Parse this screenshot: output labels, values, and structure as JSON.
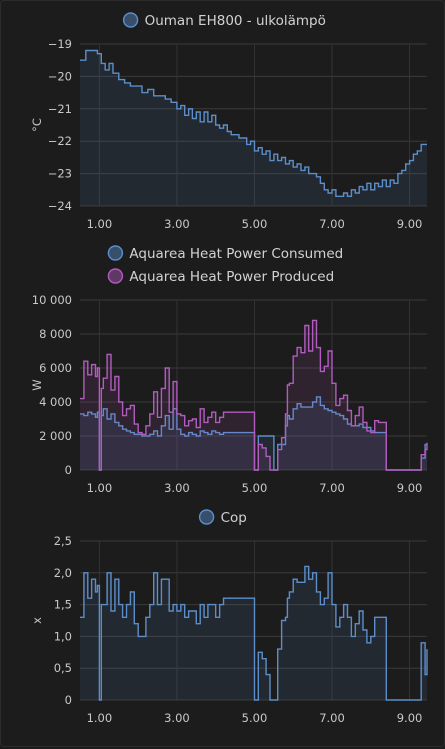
{
  "chart_data": [
    {
      "type": "line",
      "title": "",
      "xlabel": "",
      "ylabel": "°C",
      "ylim": [
        -24,
        -19
      ],
      "xlim": [
        0.5,
        9.45
      ],
      "x_ticks": [
        1,
        3,
        5,
        7,
        9
      ],
      "x_tick_labels": [
        "1.00",
        "3.00",
        "5.00",
        "7.00",
        "9.00"
      ],
      "y_ticks": [
        -24,
        -23,
        -22,
        -21,
        -20,
        -19
      ],
      "y_tick_labels": [
        "−24",
        "−23",
        "−22",
        "−21",
        "−20",
        "−19"
      ],
      "grid": true,
      "legend": "top-center",
      "step": true,
      "series": [
        {
          "name": "Ouman EH800 - ulkolämpö",
          "color": "#5c8ecb",
          "x": [
            0.5,
            0.65,
            0.8,
            0.95,
            1.05,
            1.15,
            1.25,
            1.35,
            1.5,
            1.65,
            1.8,
            1.95,
            2.1,
            2.25,
            2.4,
            2.55,
            2.7,
            2.85,
            3.0,
            3.1,
            3.2,
            3.3,
            3.4,
            3.5,
            3.6,
            3.7,
            3.8,
            3.9,
            4.0,
            4.1,
            4.2,
            4.3,
            4.4,
            4.5,
            4.6,
            4.7,
            4.8,
            4.9,
            5.0,
            5.1,
            5.2,
            5.3,
            5.4,
            5.5,
            5.6,
            5.7,
            5.8,
            5.9,
            6.0,
            6.1,
            6.2,
            6.3,
            6.4,
            6.5,
            6.6,
            6.7,
            6.8,
            6.9,
            7.0,
            7.1,
            7.2,
            7.3,
            7.4,
            7.5,
            7.6,
            7.7,
            7.8,
            7.9,
            8.0,
            8.1,
            8.2,
            8.3,
            8.4,
            8.5,
            8.6,
            8.7,
            8.8,
            8.9,
            9.0,
            9.1,
            9.2,
            9.3,
            9.45
          ],
          "y": [
            -19.5,
            -19.2,
            -19.2,
            -19.3,
            -19.6,
            -19.8,
            -19.6,
            -19.9,
            -20.1,
            -20.2,
            -20.3,
            -20.3,
            -20.5,
            -20.4,
            -20.6,
            -20.6,
            -20.7,
            -20.8,
            -21.0,
            -20.9,
            -21.2,
            -21.0,
            -21.3,
            -21.1,
            -21.4,
            -21.1,
            -21.4,
            -21.2,
            -21.5,
            -21.6,
            -21.5,
            -21.7,
            -21.8,
            -21.8,
            -21.9,
            -21.9,
            -22.1,
            -22.0,
            -22.3,
            -22.2,
            -22.4,
            -22.3,
            -22.6,
            -22.4,
            -22.6,
            -22.5,
            -22.7,
            -22.6,
            -22.8,
            -22.7,
            -22.9,
            -22.8,
            -23.0,
            -23.0,
            -23.1,
            -23.3,
            -23.5,
            -23.6,
            -23.5,
            -23.7,
            -23.7,
            -23.6,
            -23.7,
            -23.5,
            -23.6,
            -23.4,
            -23.5,
            -23.3,
            -23.5,
            -23.3,
            -23.4,
            -23.2,
            -23.4,
            -23.2,
            -23.3,
            -23.0,
            -22.9,
            -22.7,
            -22.6,
            -22.4,
            -22.3,
            -22.1,
            -22.1
          ]
        }
      ]
    },
    {
      "type": "line",
      "title": "",
      "xlabel": "",
      "ylabel": "W",
      "ylim": [
        0,
        10000
      ],
      "xlim": [
        0.5,
        9.45
      ],
      "x_ticks": [
        1,
        3,
        5,
        7,
        9
      ],
      "x_tick_labels": [
        "1.00",
        "3.00",
        "5.00",
        "7.00",
        "9.00"
      ],
      "y_ticks": [
        0,
        2000,
        4000,
        6000,
        8000,
        10000
      ],
      "y_tick_labels": [
        "0",
        "2 000",
        "4 000",
        "6 000",
        "8 000",
        "10 000"
      ],
      "grid": true,
      "legend": "top-center",
      "step": true,
      "series": [
        {
          "name": "Aquarea Heat Power Consumed",
          "color": "#5c8ecb",
          "x": [
            0.5,
            0.6,
            0.7,
            0.8,
            0.9,
            0.95,
            1.0,
            1.05,
            1.1,
            1.2,
            1.3,
            1.4,
            1.5,
            1.6,
            1.7,
            1.8,
            1.9,
            2.0,
            2.1,
            2.2,
            2.3,
            2.4,
            2.5,
            2.6,
            2.7,
            2.8,
            2.9,
            3.0,
            3.1,
            3.2,
            3.3,
            3.4,
            3.5,
            3.6,
            3.7,
            3.8,
            3.9,
            4.0,
            4.1,
            4.2,
            4.3,
            4.4,
            4.5,
            4.6,
            4.7,
            4.8,
            4.9,
            5.0,
            5.1,
            5.2,
            5.3,
            5.4,
            5.5,
            5.6,
            5.7,
            5.8,
            5.85,
            5.9,
            6.0,
            6.1,
            6.2,
            6.3,
            6.4,
            6.5,
            6.6,
            6.7,
            6.8,
            6.9,
            7.0,
            7.1,
            7.2,
            7.3,
            7.4,
            7.5,
            7.6,
            7.7,
            7.8,
            7.9,
            8.0,
            8.1,
            8.2,
            8.3,
            8.4,
            8.5,
            8.6,
            8.7,
            8.8,
            8.9,
            9.0,
            9.1,
            9.2,
            9.3,
            9.4,
            9.45
          ],
          "y": [
            3300,
            3200,
            3400,
            3300,
            3100,
            3400,
            0,
            3200,
            3600,
            3000,
            3300,
            2800,
            2600,
            2400,
            2300,
            2200,
            2100,
            2100,
            2000,
            2000,
            2100,
            2300,
            2000,
            2600,
            3200,
            2400,
            3600,
            2400,
            2100,
            2000,
            2200,
            2100,
            2000,
            2300,
            2200,
            2100,
            2300,
            2200,
            2100,
            2200,
            2200,
            2200,
            2200,
            2200,
            2200,
            2200,
            2200,
            0,
            2000,
            2000,
            2000,
            2000,
            0,
            1500,
            1500,
            2600,
            3200,
            3000,
            3600,
            3900,
            3700,
            3700,
            3700,
            4000,
            4300,
            3800,
            3600,
            3500,
            3400,
            3300,
            3200,
            3000,
            2700,
            2600,
            2600,
            2700,
            2500,
            2500,
            2300,
            2200,
            2200,
            2200,
            0,
            0,
            0,
            0,
            0,
            0,
            0,
            0,
            0,
            700,
            1500,
            1500
          ]
        },
        {
          "name": "Aquarea Heat Power Produced",
          "color": "#b25cbf",
          "x": [
            0.5,
            0.6,
            0.7,
            0.8,
            0.9,
            0.95,
            1.0,
            1.05,
            1.1,
            1.2,
            1.3,
            1.4,
            1.5,
            1.6,
            1.7,
            1.8,
            1.9,
            2.0,
            2.1,
            2.2,
            2.3,
            2.4,
            2.5,
            2.6,
            2.7,
            2.8,
            2.9,
            3.0,
            3.1,
            3.2,
            3.3,
            3.4,
            3.5,
            3.6,
            3.7,
            3.8,
            3.9,
            4.0,
            4.1,
            4.2,
            4.3,
            4.4,
            4.5,
            4.6,
            4.7,
            4.8,
            4.9,
            5.0,
            5.1,
            5.2,
            5.3,
            5.4,
            5.5,
            5.6,
            5.7,
            5.8,
            5.85,
            5.9,
            6.0,
            6.1,
            6.2,
            6.3,
            6.4,
            6.5,
            6.6,
            6.7,
            6.8,
            6.9,
            7.0,
            7.1,
            7.2,
            7.3,
            7.4,
            7.5,
            7.6,
            7.7,
            7.8,
            7.9,
            8.0,
            8.1,
            8.2,
            8.3,
            8.4,
            8.5,
            8.6,
            8.7,
            8.8,
            8.9,
            9.0,
            9.1,
            9.2,
            9.3,
            9.4,
            9.45
          ],
          "y": [
            4200,
            6400,
            5600,
            6200,
            5500,
            6000,
            0,
            4800,
            5400,
            6800,
            4700,
            5500,
            4000,
            3200,
            3600,
            3800,
            2700,
            2200,
            2100,
            2600,
            3300,
            4600,
            3100,
            4800,
            6000,
            3400,
            5200,
            3300,
            3200,
            2600,
            2900,
            3000,
            2500,
            3600,
            2800,
            3100,
            3400,
            2800,
            3100,
            3400,
            3400,
            3400,
            3400,
            3400,
            3400,
            3400,
            3400,
            0,
            1500,
            1300,
            800,
            0,
            0,
            1200,
            1900,
            3300,
            5000,
            5100,
            6700,
            7200,
            6900,
            8500,
            7000,
            8800,
            7200,
            5800,
            6100,
            7000,
            5100,
            3800,
            4200,
            4400,
            3500,
            2600,
            3200,
            3700,
            2800,
            2300,
            2200,
            2900,
            2800,
            2800,
            0,
            0,
            0,
            0,
            0,
            0,
            0,
            0,
            0,
            900,
            1200,
            1600
          ]
        }
      ]
    },
    {
      "type": "line",
      "title": "",
      "xlabel": "",
      "ylabel": "x",
      "ylim": [
        0,
        2.5
      ],
      "xlim": [
        0.5,
        9.45
      ],
      "x_ticks": [
        1,
        3,
        5,
        7,
        9
      ],
      "x_tick_labels": [
        "1.00",
        "3.00",
        "5.00",
        "7.00",
        "9.00"
      ],
      "y_ticks": [
        0,
        0.5,
        1,
        1.5,
        2,
        2.5
      ],
      "y_tick_labels": [
        "0",
        "0,5",
        "1,0",
        "1,5",
        "2,0",
        "2,5"
      ],
      "grid": true,
      "legend": "top-center",
      "step": true,
      "series": [
        {
          "name": "Cop",
          "color": "#5c8ecb",
          "x": [
            0.5,
            0.6,
            0.7,
            0.8,
            0.9,
            0.95,
            1.0,
            1.05,
            1.1,
            1.2,
            1.3,
            1.4,
            1.5,
            1.6,
            1.7,
            1.8,
            1.9,
            2.0,
            2.1,
            2.2,
            2.3,
            2.4,
            2.5,
            2.6,
            2.7,
            2.8,
            2.9,
            3.0,
            3.1,
            3.2,
            3.3,
            3.4,
            3.5,
            3.6,
            3.7,
            3.8,
            3.9,
            4.0,
            4.1,
            4.2,
            4.3,
            4.4,
            4.5,
            4.6,
            4.7,
            4.8,
            4.9,
            5.0,
            5.1,
            5.2,
            5.3,
            5.4,
            5.5,
            5.6,
            5.7,
            5.8,
            5.85,
            5.9,
            6.0,
            6.1,
            6.2,
            6.3,
            6.4,
            6.5,
            6.6,
            6.7,
            6.8,
            6.9,
            7.0,
            7.1,
            7.2,
            7.3,
            7.4,
            7.5,
            7.6,
            7.7,
            7.8,
            7.9,
            8.0,
            8.1,
            8.2,
            8.3,
            8.4,
            8.5,
            8.6,
            8.7,
            8.8,
            8.9,
            9.0,
            9.1,
            9.2,
            9.3,
            9.4,
            9.45
          ],
          "y": [
            1.3,
            2.0,
            1.6,
            1.9,
            1.7,
            1.8,
            0,
            1.5,
            1.5,
            2.0,
            1.4,
            1.9,
            1.5,
            1.3,
            1.5,
            1.7,
            1.2,
            1.0,
            1.0,
            1.3,
            1.5,
            2.0,
            1.5,
            1.9,
            1.9,
            1.4,
            1.5,
            1.4,
            1.5,
            1.3,
            1.4,
            1.4,
            1.2,
            1.5,
            1.3,
            1.5,
            1.5,
            1.3,
            1.5,
            1.6,
            1.6,
            1.6,
            1.6,
            1.6,
            1.6,
            1.6,
            1.6,
            0,
            0.75,
            0.65,
            0.4,
            0,
            0,
            0.8,
            1.25,
            1.3,
            1.6,
            1.7,
            1.9,
            1.85,
            1.85,
            2.1,
            1.9,
            2.0,
            1.7,
            1.5,
            1.6,
            2.0,
            1.5,
            1.15,
            1.3,
            1.5,
            1.3,
            1.0,
            1.2,
            1.4,
            1.1,
            0.9,
            1.0,
            1.3,
            1.3,
            1.3,
            0,
            0,
            0,
            0,
            0,
            0,
            0,
            0,
            0,
            0.9,
            0.4,
            0.8
          ]
        }
      ]
    }
  ]
}
